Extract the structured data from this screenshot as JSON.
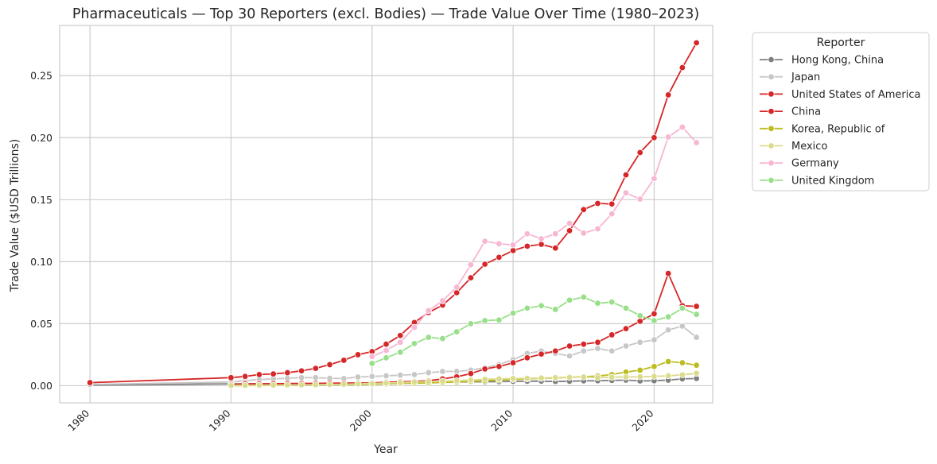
{
  "chart_data": {
    "type": "line",
    "title": "Pharmaceuticals — Top 30 Reporters (excl. Bodies) — Trade Value Over Time (1980–2023)",
    "xlabel": "Year",
    "ylabel": "Trade Value ($USD Trillions)",
    "xlim": [
      1977.85,
      1999.25,
      2024.15
    ],
    "ylim": [
      -0.0138,
      0.2905
    ],
    "xticks": [
      1980,
      1990,
      2000,
      2010,
      2020
    ],
    "yticks": [
      0.0,
      0.05,
      0.1,
      0.15,
      0.2,
      0.25
    ],
    "ytick_labels": [
      "0.00",
      "0.05",
      "0.10",
      "0.15",
      "0.20",
      "0.25"
    ],
    "grid": true,
    "legend": {
      "title": "Reporter",
      "position": "outside-right"
    },
    "series": [
      {
        "name": "Hong Kong, China",
        "color": "#7f7f7f",
        "x": [
          1980,
          1990,
          1991,
          1992,
          1993,
          1994,
          1995,
          1996,
          1997,
          1998,
          1999,
          2000,
          2001,
          2002,
          2003,
          2004,
          2005,
          2006,
          2007,
          2008,
          2009,
          2010,
          2011,
          2012,
          2013,
          2014,
          2015,
          2016,
          2017,
          2018,
          2019,
          2020,
          2021,
          2022,
          2023
        ],
        "y": [
          0.0005,
          0.0015,
          0.0015,
          0.0016,
          0.0016,
          0.0017,
          0.0017,
          0.0018,
          0.0018,
          0.0019,
          0.0019,
          0.002,
          0.0021,
          0.0022,
          0.0023,
          0.0025,
          0.0027,
          0.0029,
          0.0031,
          0.0032,
          0.0033,
          0.0035,
          0.0036,
          0.0037,
          0.0034,
          0.0036,
          0.0039,
          0.004,
          0.0042,
          0.0045,
          0.0038,
          0.004,
          0.0045,
          0.0055,
          0.0058
        ]
      },
      {
        "name": "Japan",
        "color": "#c7c7c7",
        "x": [
          1980,
          1990,
          1991,
          1992,
          1993,
          1994,
          1995,
          1996,
          1997,
          1998,
          1999,
          2000,
          2001,
          2002,
          2003,
          2004,
          2005,
          2006,
          2007,
          2008,
          2009,
          2010,
          2011,
          2012,
          2013,
          2014,
          2015,
          2016,
          2017,
          2018,
          2019,
          2020,
          2021,
          2022,
          2023
        ],
        "y": [
          0.001,
          0.003,
          0.004,
          0.005,
          0.0055,
          0.006,
          0.0065,
          0.0065,
          0.006,
          0.0058,
          0.007,
          0.0075,
          0.008,
          0.0085,
          0.009,
          0.0105,
          0.0115,
          0.0115,
          0.0125,
          0.0145,
          0.017,
          0.021,
          0.026,
          0.028,
          0.026,
          0.024,
          0.028,
          0.03,
          0.028,
          0.032,
          0.035,
          0.037,
          0.045,
          0.048,
          0.039
        ]
      },
      {
        "name": "United States of America",
        "color": "#d62728",
        "x": [
          1980,
          1990,
          1991,
          1992,
          1993,
          1994,
          1995,
          1996,
          1997,
          1998,
          1999,
          2000,
          2001,
          2002,
          2003,
          2004,
          2005,
          2006,
          2007,
          2008,
          2009,
          2010,
          2011,
          2012,
          2013,
          2014,
          2015,
          2016,
          2017,
          2018,
          2019,
          2020,
          2021,
          2022,
          2023
        ],
        "y": [
          0.0025,
          0.0065,
          0.0075,
          0.009,
          0.0095,
          0.0105,
          0.012,
          0.014,
          0.017,
          0.0205,
          0.025,
          0.0275,
          0.0335,
          0.0405,
          0.051,
          0.059,
          0.065,
          0.075,
          0.087,
          0.098,
          0.1035,
          0.109,
          0.1125,
          0.114,
          0.111,
          0.125,
          0.142,
          0.147,
          0.1465,
          0.17,
          0.188,
          0.2,
          0.2345,
          0.2565,
          0.2765
        ]
      },
      {
        "name": "China",
        "color": "#d62728",
        "x": [
          1990,
          1991,
          1992,
          1993,
          1994,
          1995,
          1996,
          1997,
          1998,
          1999,
          2000,
          2001,
          2002,
          2003,
          2004,
          2005,
          2006,
          2007,
          2008,
          2009,
          2010,
          2011,
          2012,
          2013,
          2014,
          2015,
          2016,
          2017,
          2018,
          2019,
          2020,
          2021,
          2022,
          2023
        ],
        "y": [
          0.001,
          0.0015,
          0.0015,
          0.0016,
          0.0017,
          0.0018,
          0.0019,
          0.002,
          0.0021,
          0.0022,
          0.0023,
          0.0028,
          0.0032,
          0.0035,
          0.004,
          0.0055,
          0.0072,
          0.0098,
          0.0135,
          0.0155,
          0.0185,
          0.0225,
          0.0255,
          0.028,
          0.032,
          0.0335,
          0.035,
          0.041,
          0.046,
          0.052,
          0.058,
          0.0905,
          0.0645,
          0.064
        ]
      },
      {
        "name": "Korea, Republic of",
        "color": "#bcbd22",
        "x": [
          1990,
          1991,
          1992,
          1993,
          1994,
          1995,
          1996,
          1997,
          1998,
          1999,
          2000,
          2001,
          2002,
          2003,
          2004,
          2005,
          2006,
          2007,
          2008,
          2009,
          2010,
          2011,
          2012,
          2013,
          2014,
          2015,
          2016,
          2017,
          2018,
          2019,
          2020,
          2021,
          2022,
          2023
        ],
        "y": [
          0.0001,
          0.0001,
          0.0002,
          0.0003,
          0.0004,
          0.0005,
          0.0006,
          0.0007,
          0.0008,
          0.001,
          0.0012,
          0.0015,
          0.0018,
          0.002,
          0.0022,
          0.0026,
          0.003,
          0.0035,
          0.004,
          0.0045,
          0.005,
          0.0055,
          0.006,
          0.0062,
          0.0068,
          0.0072,
          0.0078,
          0.009,
          0.011,
          0.0125,
          0.0155,
          0.0195,
          0.0185,
          0.0165
        ]
      },
      {
        "name": "Mexico",
        "color": "#dbdb8d",
        "x": [
          1990,
          1991,
          1992,
          1993,
          1994,
          1995,
          1996,
          1997,
          1998,
          1999,
          2000,
          2001,
          2002,
          2003,
          2004,
          2005,
          2006,
          2007,
          2008,
          2009,
          2010,
          2011,
          2012,
          2013,
          2014,
          2015,
          2016,
          2017,
          2018,
          2019,
          2020,
          2021,
          2022,
          2023
        ],
        "y": [
          0.0002,
          0.0003,
          0.0004,
          0.0005,
          0.0006,
          0.0007,
          0.0008,
          0.001,
          0.0012,
          0.0015,
          0.0018,
          0.0022,
          0.0025,
          0.003,
          0.0033,
          0.0036,
          0.004,
          0.0045,
          0.0052,
          0.0055,
          0.0058,
          0.006,
          0.0062,
          0.0065,
          0.0068,
          0.007,
          0.0065,
          0.0068,
          0.007,
          0.0072,
          0.0075,
          0.008,
          0.0088,
          0.01
        ]
      },
      {
        "name": "Germany",
        "color": "#f7b6d2",
        "x": [
          2000,
          2001,
          2002,
          2003,
          2004,
          2005,
          2006,
          2007,
          2008,
          2009,
          2010,
          2011,
          2012,
          2013,
          2014,
          2015,
          2016,
          2017,
          2018,
          2019,
          2020,
          2021,
          2022,
          2023
        ],
        "y": [
          0.0235,
          0.0285,
          0.035,
          0.047,
          0.0605,
          0.0685,
          0.0795,
          0.0975,
          0.1165,
          0.1145,
          0.1135,
          0.1225,
          0.1185,
          0.1225,
          0.131,
          0.123,
          0.1265,
          0.1385,
          0.1555,
          0.1505,
          0.167,
          0.2005,
          0.2085,
          0.196
        ]
      },
      {
        "name": "United Kingdom",
        "color": "#98df8a",
        "x": [
          2000,
          2001,
          2002,
          2003,
          2004,
          2005,
          2006,
          2007,
          2008,
          2009,
          2010,
          2011,
          2012,
          2013,
          2014,
          2015,
          2016,
          2017,
          2018,
          2019,
          2020,
          2021,
          2022,
          2023
        ],
        "y": [
          0.018,
          0.0225,
          0.027,
          0.034,
          0.039,
          0.038,
          0.0435,
          0.05,
          0.0525,
          0.053,
          0.0585,
          0.0625,
          0.0645,
          0.0615,
          0.069,
          0.0715,
          0.0665,
          0.0675,
          0.0625,
          0.0565,
          0.0525,
          0.0555,
          0.0625,
          0.0575
        ]
      }
    ]
  }
}
